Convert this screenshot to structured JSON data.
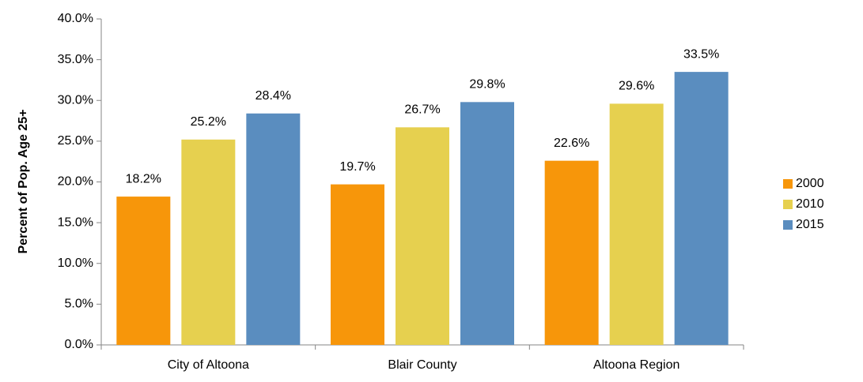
{
  "chart_data": {
    "type": "bar",
    "y_label": "Percent of Pop. Age 25+",
    "categories": [
      "City of Altoona",
      "Blair County",
      "Altoona Region"
    ],
    "series": [
      {
        "name": "2000",
        "color": "#f7960a",
        "values": [
          18.2,
          19.7,
          22.6
        ],
        "value_labels": [
          "18.2%",
          "19.7%",
          "22.6%"
        ]
      },
      {
        "name": "2010",
        "color": "#e6d04f",
        "values": [
          25.2,
          26.7,
          29.6
        ],
        "value_labels": [
          "25.2%",
          "26.7%",
          "29.6%"
        ]
      },
      {
        "name": "2015",
        "color": "#5a8dbf",
        "values": [
          28.4,
          29.8,
          33.5
        ],
        "value_labels": [
          "28.4%",
          "29.8%",
          "33.5%"
        ]
      }
    ],
    "ylim": [
      0,
      40
    ],
    "yticks": [
      {
        "value": 0,
        "label": "0.0%"
      },
      {
        "value": 5,
        "label": "5.0%"
      },
      {
        "value": 10,
        "label": "10.0%"
      },
      {
        "value": 15,
        "label": "15.0%"
      },
      {
        "value": 20,
        "label": "20.0%"
      },
      {
        "value": 25,
        "label": "25.0%"
      },
      {
        "value": 30,
        "label": "30.0%"
      },
      {
        "value": 35,
        "label": "35.0%"
      },
      {
        "value": 40,
        "label": "40.0%"
      }
    ],
    "legend": "right",
    "grid": false
  }
}
